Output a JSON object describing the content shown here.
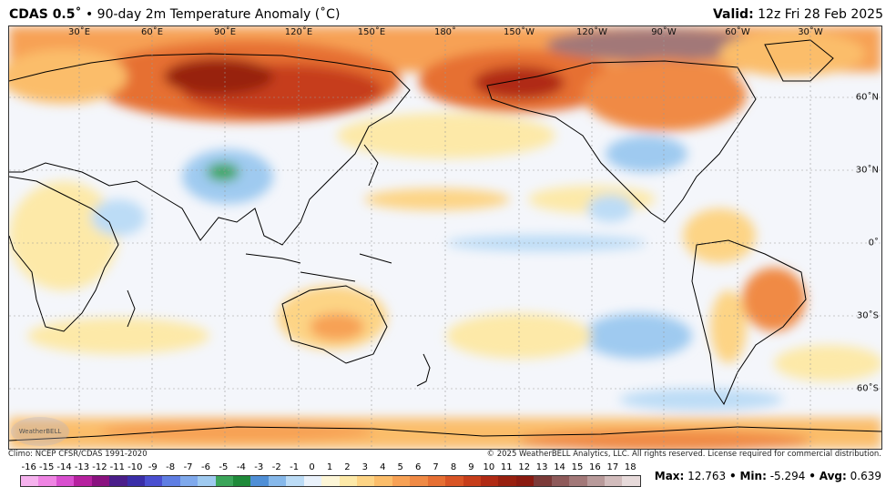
{
  "header": {
    "model": "CDAS 0.5˚",
    "separator": "•",
    "product": "90-day 2m Temperature Anomaly (˚C)",
    "valid_label": "Valid:",
    "valid_time": "12z Fri 28 Feb 2025"
  },
  "map": {
    "projection": "equirectangular-pacific-centered",
    "lon_labels": [
      "30˚E",
      "60˚E",
      "90˚E",
      "120˚E",
      "150˚E",
      "180˚",
      "150˚W",
      "120˚W",
      "90˚W",
      "60˚W",
      "30˚W"
    ],
    "lat_labels": [
      "60˚N",
      "30˚N",
      "0˚",
      "30˚S",
      "60˚S"
    ],
    "ocean_color": "#f4f6fb",
    "land_outline_color": "#000000"
  },
  "footer": {
    "climo": "Climo: NCEP CFSR/CDAS 1991-2020",
    "copyright": "© 2025 WeatherBELL Analytics, LLC. All rights reserved. License required for commercial distribution.",
    "logo_text": "WeatherBELL"
  },
  "colorbar": {
    "ticks": [
      "-16",
      "-15",
      "-14",
      "-13",
      "-12",
      "-11",
      "-10",
      "-9",
      "-8",
      "-7",
      "-6",
      "-5",
      "-4",
      "-3",
      "-2",
      "-1",
      "0",
      "1",
      "2",
      "3",
      "4",
      "5",
      "6",
      "7",
      "8",
      "9",
      "10",
      "11",
      "12",
      "13",
      "14",
      "15",
      "16",
      "17",
      "18"
    ],
    "colors": [
      "#f6b2ee",
      "#ef84e3",
      "#d94fcf",
      "#b6219f",
      "#8a1280",
      "#4b1e8a",
      "#3a2ea8",
      "#4a4fd0",
      "#5f7ee3",
      "#7fa9ec",
      "#9fcaf0",
      "#3ba55a",
      "#1f8a3a",
      "#4f8fd6",
      "#86b8ea",
      "#bcdcf6",
      "#eaf2fb",
      "#fdf6d7",
      "#fde9a8",
      "#fdd485",
      "#fbbd6a",
      "#f7a155",
      "#f08a45",
      "#e66f33",
      "#d85425",
      "#c63d1a",
      "#b02a14",
      "#98200f",
      "#8a1a10",
      "#7b3a38",
      "#8e5a5a",
      "#a27878",
      "#b89a9a",
      "#d2bcbc",
      "#e7dada"
    ]
  },
  "stats": {
    "max_label": "Max:",
    "max": "12.763",
    "min_label": "Min:",
    "min": "-5.294",
    "avg_label": "Avg:",
    "avg": "0.639",
    "sep": "•"
  }
}
